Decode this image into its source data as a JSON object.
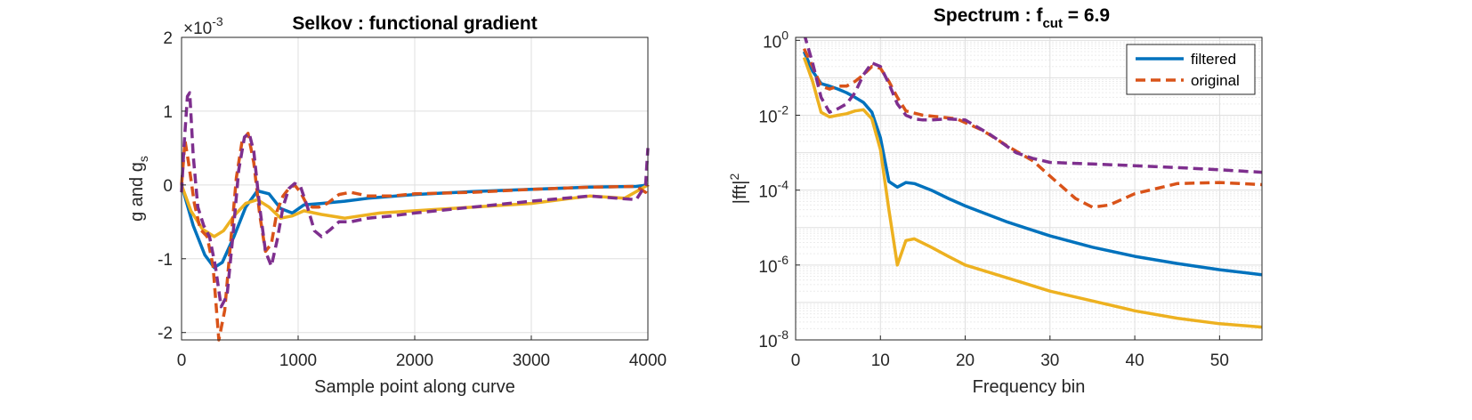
{
  "chart_data": [
    {
      "type": "line",
      "title": "Selkov : functional gradient",
      "xlabel": "Sample point along curve",
      "ylabel": "g and g",
      "ylabel_subscript": "s",
      "exponent_label": "×10",
      "exponent_value": "-3",
      "xlim": [
        0,
        4000
      ],
      "ylim": [
        -2.1,
        2
      ],
      "xticks": [
        0,
        1000,
        2000,
        3000,
        4000
      ],
      "xtick_labels": [
        "0",
        "1000",
        "2000",
        "3000",
        "4000"
      ],
      "yticks": [
        -2,
        -1,
        0,
        1,
        2
      ],
      "ytick_labels": [
        "-2",
        "-1",
        "0",
        "1",
        "2"
      ],
      "grid": true,
      "series": [
        {
          "color": "#0072BD",
          "style": "solid",
          "x": [
            0,
            100,
            200,
            280,
            350,
            450,
            550,
            650,
            750,
            850,
            950,
            1050,
            1200,
            1400,
            1600,
            2000,
            2500,
            3000,
            3500,
            3900,
            4000
          ],
          "y": [
            0,
            -0.55,
            -0.95,
            -1.12,
            -1.05,
            -0.7,
            -0.3,
            -0.08,
            -0.12,
            -0.32,
            -0.38,
            -0.27,
            -0.25,
            -0.22,
            -0.18,
            -0.13,
            -0.09,
            -0.06,
            -0.03,
            -0.02,
            0
          ]
        },
        {
          "color": "#EDB120",
          "style": "solid",
          "x": [
            0,
            80,
            180,
            280,
            360,
            450,
            550,
            650,
            750,
            850,
            950,
            1050,
            1200,
            1400,
            1700,
            2000,
            2500,
            3000,
            3500,
            3800,
            4000
          ],
          "y": [
            0,
            -0.35,
            -0.6,
            -0.7,
            -0.62,
            -0.42,
            -0.25,
            -0.2,
            -0.3,
            -0.45,
            -0.42,
            -0.35,
            -0.4,
            -0.45,
            -0.38,
            -0.35,
            -0.3,
            -0.25,
            -0.15,
            -0.18,
            0
          ]
        },
        {
          "color": "#D95319",
          "style": "dashed",
          "x": [
            0,
            30,
            60,
            110,
            160,
            220,
            270,
            320,
            370,
            420,
            470,
            520,
            570,
            620,
            670,
            720,
            770,
            820,
            870,
            920,
            970,
            1020,
            1070,
            1120,
            1180,
            1250,
            1350,
            1450,
            1600,
            1800,
            2000,
            2500,
            3000,
            3500,
            3900,
            3980,
            4000
          ],
          "y": [
            0,
            0.6,
            0.3,
            -0.25,
            -0.6,
            -0.7,
            -1.1,
            -2.1,
            -1.7,
            -0.8,
            0.1,
            0.6,
            0.7,
            0.3,
            -0.4,
            -0.9,
            -0.8,
            -0.35,
            -0.15,
            -0.05,
            0,
            -0.1,
            -0.25,
            -0.3,
            -0.3,
            -0.25,
            -0.13,
            -0.1,
            -0.15,
            -0.15,
            -0.12,
            -0.1,
            -0.06,
            -0.03,
            -0.02,
            -0.1,
            0
          ]
        },
        {
          "color": "#7E2F8E",
          "style": "dashed",
          "x": [
            0,
            20,
            50,
            70,
            100,
            140,
            190,
            240,
            290,
            340,
            390,
            440,
            490,
            540,
            580,
            620,
            670,
            720,
            770,
            820,
            870,
            920,
            970,
            1020,
            1080,
            1140,
            1200,
            1280,
            1350,
            1450,
            1600,
            1800,
            2000,
            2500,
            3000,
            3500,
            3900,
            3980,
            4000
          ],
          "y": [
            -0.1,
            0.5,
            1.2,
            1.25,
            0.4,
            -0.3,
            -0.55,
            -0.7,
            -1.1,
            -1.65,
            -1.5,
            -0.7,
            0.2,
            0.65,
            0.7,
            0.45,
            -0.3,
            -0.9,
            -1.1,
            -0.75,
            -0.3,
            -0.05,
            0.02,
            -0.02,
            -0.3,
            -0.62,
            -0.7,
            -0.6,
            -0.5,
            -0.5,
            -0.45,
            -0.42,
            -0.38,
            -0.3,
            -0.22,
            -0.15,
            -0.2,
            0.0,
            0.5
          ]
        }
      ]
    },
    {
      "type": "line",
      "title": "Spectrum : f",
      "title_subscript": "cut",
      "title_suffix": " = 6.9",
      "xlabel": "Frequency bin",
      "ylabel": "|fft|",
      "ylabel_superscript": "2",
      "xlim": [
        0,
        55
      ],
      "ylim": [
        1e-08,
        1.2
      ],
      "yscale": "log",
      "xticks": [
        0,
        10,
        20,
        30,
        40,
        50
      ],
      "xtick_labels": [
        "0",
        "10",
        "20",
        "30",
        "40",
        "50"
      ],
      "yticks": [
        1e-08,
        1e-06,
        0.0001,
        0.01,
        1
      ],
      "ytick_bases": [
        "10",
        "10",
        "10",
        "10",
        "10"
      ],
      "ytick_exps": [
        "-8",
        "-6",
        "-4",
        "-2",
        "0"
      ],
      "grid": true,
      "legend": {
        "position": "top-right",
        "entries": [
          {
            "label": "filtered",
            "color": "#0072BD",
            "style": "solid"
          },
          {
            "label": "original",
            "color": "#D95319",
            "style": "dashed"
          }
        ]
      },
      "series": [
        {
          "name": "filtered",
          "color": "#0072BD",
          "style": "solid",
          "x": [
            1,
            2,
            3,
            4,
            5,
            6,
            7,
            8,
            9,
            10,
            11,
            12,
            13,
            14,
            16,
            18,
            20,
            25,
            30,
            35,
            40,
            45,
            50,
            55
          ],
          "y": [
            0.5,
            0.15,
            0.07,
            0.06,
            0.05,
            0.04,
            0.03,
            0.022,
            0.012,
            0.0025,
            0.00017,
            0.00012,
            0.00016,
            0.00015,
            0.0001,
            6e-05,
            3.8e-05,
            1.4e-05,
            6e-06,
            3e-06,
            1.7e-06,
            1.1e-06,
            7.5e-07,
            5.5e-07
          ]
        },
        {
          "name": "original",
          "color": "#D95319",
          "style": "dashed",
          "x": [
            1,
            2,
            3,
            4,
            5,
            6,
            7,
            8,
            9,
            10,
            11,
            12,
            13,
            15,
            17,
            19,
            22,
            25,
            28,
            31,
            33,
            35,
            37,
            40,
            45,
            50,
            55
          ],
          "y": [
            0.6,
            0.2,
            0.06,
            0.05,
            0.06,
            0.06,
            0.08,
            0.12,
            0.2,
            0.18,
            0.08,
            0.03,
            0.013,
            0.01,
            0.009,
            0.008,
            0.004,
            0.0015,
            0.0006,
            0.00015,
            6e-05,
            3.5e-05,
            4e-05,
            8e-05,
            0.00015,
            0.00016,
            0.00014
          ]
        },
        {
          "color": "#EDB120",
          "style": "solid",
          "x": [
            1,
            2,
            3,
            4,
            5,
            6,
            7,
            8,
            9,
            10,
            11,
            12,
            13,
            14,
            16,
            18,
            20,
            25,
            30,
            35,
            40,
            45,
            50,
            55
          ],
          "y": [
            0.35,
            0.08,
            0.012,
            0.009,
            0.01,
            0.011,
            0.013,
            0.014,
            0.008,
            0.0012,
            3e-05,
            1e-06,
            4.5e-06,
            5e-06,
            3e-06,
            1.7e-06,
            1e-06,
            4.5e-07,
            2e-07,
            1.1e-07,
            6e-08,
            3.8e-08,
            2.7e-08,
            2.2e-08
          ]
        },
        {
          "color": "#7E2F8E",
          "style": "dashed",
          "x": [
            1,
            2,
            3,
            4,
            5,
            6,
            7,
            8,
            9,
            10,
            11,
            12,
            13,
            14,
            15,
            16,
            18,
            20,
            23,
            26,
            28,
            30,
            35,
            40,
            45,
            50,
            55
          ],
          "y": [
            1.5,
            0.25,
            0.03,
            0.012,
            0.015,
            0.02,
            0.04,
            0.12,
            0.25,
            0.2,
            0.07,
            0.02,
            0.01,
            0.008,
            0.0075,
            0.0075,
            0.008,
            0.0075,
            0.003,
            0.001,
            0.0007,
            0.00055,
            0.0005,
            0.00045,
            0.0004,
            0.00035,
            0.0003
          ]
        }
      ]
    }
  ]
}
